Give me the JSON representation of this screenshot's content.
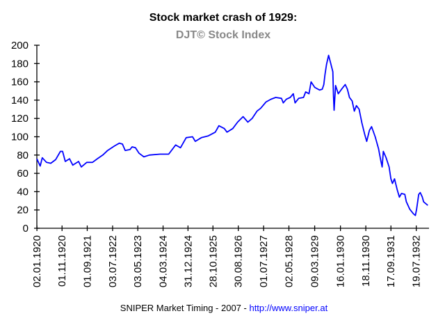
{
  "chart_data": {
    "type": "line",
    "title": "Stock market crash of 1929:",
    "subtitle": "DJT© Stock Index",
    "xlabel": "",
    "ylabel": "",
    "ylim": [
      0,
      200
    ],
    "xlim": [
      1920.0,
      1932.97
    ],
    "yticks": [
      "0",
      "20",
      "40",
      "60",
      "80",
      "100",
      "120",
      "140",
      "160",
      "180",
      "200"
    ],
    "xticks": [
      "02.01.1920",
      "01.11.1920",
      "01.09.1921",
      "03.07.1922",
      "03.05.1923",
      "04.03.1924",
      "31.12.1924",
      "28.10.1925",
      "30.08.1926",
      "01.07.1927",
      "02.05.1928",
      "09.03.1929",
      "16.01.1930",
      "18.11.1930",
      "17.09.1931",
      "19.07.1932"
    ],
    "grid": false,
    "legend": "none",
    "series_color": "#0000ff",
    "series": [
      {
        "x": [
          1920.0,
          1920.11,
          1920.18,
          1920.32,
          1920.46,
          1920.62,
          1920.78,
          1920.85,
          1920.94,
          1921.08,
          1921.19,
          1921.38,
          1921.47,
          1921.65,
          1921.84,
          1922.0,
          1922.18,
          1922.34,
          1922.57,
          1922.73,
          1922.83,
          1922.92,
          1923.08,
          1923.15,
          1923.26,
          1923.38,
          1923.54,
          1923.72,
          1924.07,
          1924.36,
          1924.59,
          1924.75,
          1924.94,
          1925.15,
          1925.24,
          1925.44,
          1925.67,
          1925.9,
          1926.02,
          1926.2,
          1926.29,
          1926.48,
          1926.64,
          1926.82,
          1926.98,
          1927.12,
          1927.28,
          1927.4,
          1927.58,
          1927.74,
          1927.9,
          1928.09,
          1928.15,
          1928.25,
          1928.38,
          1928.48,
          1928.54,
          1928.66,
          1928.82,
          1928.89,
          1929.0,
          1929.07,
          1929.19,
          1929.35,
          1929.44,
          1929.49,
          1929.53,
          1929.58,
          1929.65,
          1929.72,
          1929.79,
          1929.81,
          1929.83,
          1929.88,
          1929.97,
          1930.08,
          1930.2,
          1930.27,
          1930.34,
          1930.43,
          1930.5,
          1930.57,
          1930.66,
          1930.75,
          1930.84,
          1930.91,
          1931.0,
          1931.07,
          1931.19,
          1931.3,
          1931.37,
          1931.42,
          1931.46,
          1931.55,
          1931.65,
          1931.71,
          1931.76,
          1931.83,
          1931.92,
          1931.99,
          1932.06,
          1932.17,
          1932.22,
          1932.33,
          1932.45,
          1932.52,
          1932.56,
          1932.63,
          1932.68,
          1932.75,
          1932.79,
          1932.86,
          1932.93
        ],
        "y": [
          76,
          68,
          77,
          72,
          71,
          75,
          84,
          84,
          73,
          76,
          69,
          73,
          67,
          72,
          72,
          76,
          80,
          85,
          90,
          93,
          92,
          85,
          86,
          89,
          88,
          82,
          78,
          80,
          81,
          81,
          91,
          88,
          99,
          100,
          95,
          99,
          101,
          105,
          112,
          109,
          105,
          109,
          116,
          122,
          116,
          120,
          128,
          131,
          138,
          141,
          143,
          142,
          137,
          141,
          143,
          147,
          137,
          142,
          143,
          149,
          147,
          160,
          154,
          151,
          152,
          157,
          168,
          179,
          189,
          180,
          171,
          145,
          129,
          156,
          147,
          152,
          157,
          152,
          143,
          139,
          128,
          134,
          130,
          115,
          103,
          95,
          107,
          111,
          100,
          87,
          75,
          67,
          84,
          77,
          67,
          54,
          49,
          54,
          42,
          34,
          38,
          37,
          29,
          21,
          16,
          14,
          21,
          37,
          39,
          34,
          29,
          27,
          25
        ]
      }
    ]
  },
  "footer": {
    "text": "SNIPER Market Timing - 2007 - ",
    "link": "http://www.sniper.at"
  }
}
